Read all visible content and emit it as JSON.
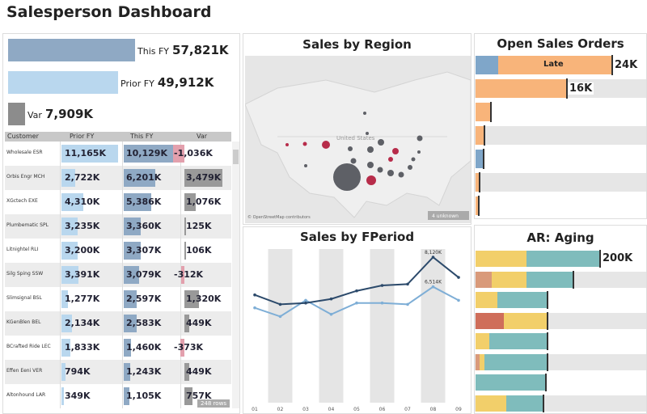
{
  "title": "Salesperson Dashboard",
  "kpis": [
    {
      "label": "This FY",
      "value": "57,821K",
      "amount": 57821,
      "color": "#8fa9c4"
    },
    {
      "label": "Prior FY",
      "value": "49,912K",
      "amount": 49912,
      "color": "#b9d7ee"
    },
    {
      "label": "Var",
      "value": "7,909K",
      "amount": 7909,
      "color": "#8c8c8c"
    }
  ],
  "table": {
    "headers": [
      "Customer",
      "Prior FY",
      "This FY",
      "Var"
    ],
    "rows": [
      {
        "customer": "Wholesale ESR",
        "prior": "11,165K",
        "prior_v": 11165,
        "this": "10,129K",
        "this_v": 10129,
        "var": "-1,036K",
        "var_v": -1036
      },
      {
        "customer": "Orbis Engr MCH",
        "prior": "2,722K",
        "prior_v": 2722,
        "this": "6,201K",
        "this_v": 6201,
        "var": "3,479K",
        "var_v": 3479
      },
      {
        "customer": "XGctech EXE",
        "prior": "4,310K",
        "prior_v": 4310,
        "this": "5,386K",
        "this_v": 5386,
        "var": "1,076K",
        "var_v": 1076
      },
      {
        "customer": "Plumbematic SPL",
        "prior": "3,235K",
        "prior_v": 3235,
        "this": "3,360K",
        "this_v": 3360,
        "var": "125K",
        "var_v": 125
      },
      {
        "customer": "Litnightel RLI",
        "prior": "3,200K",
        "prior_v": 3200,
        "this": "3,307K",
        "this_v": 3307,
        "var": "106K",
        "var_v": 106
      },
      {
        "customer": "Silg Sping SSW",
        "prior": "3,391K",
        "prior_v": 3391,
        "this": "3,079K",
        "this_v": 3079,
        "var": "-312K",
        "var_v": -312
      },
      {
        "customer": "Slimsignal BSL",
        "prior": "1,277K",
        "prior_v": 1277,
        "this": "2,597K",
        "this_v": 2597,
        "var": "1,320K",
        "var_v": 1320
      },
      {
        "customer": "KGenBlen BEL",
        "prior": "2,134K",
        "prior_v": 2134,
        "this": "2,583K",
        "this_v": 2583,
        "var": "449K",
        "var_v": 449
      },
      {
        "customer": "BCrafted Ride LEC",
        "prior": "1,833K",
        "prior_v": 1833,
        "this": "1,460K",
        "this_v": 1460,
        "var": "-373K",
        "var_v": -373
      },
      {
        "customer": "Effen Eeni VER",
        "prior": "794K",
        "prior_v": 794,
        "this": "1,243K",
        "this_v": 1243,
        "var": "449K",
        "var_v": 449
      },
      {
        "customer": "Altonhound LAR",
        "prior": "349K",
        "prior_v": 349,
        "this": "1,105K",
        "this_v": 1105,
        "var": "757K",
        "var_v": 757
      }
    ],
    "row_count_badge": "248 rows"
  },
  "map": {
    "title": "Sales by Region",
    "country_label": "United States",
    "attribution": "© OpenStreetMap contributors",
    "badge": "4 unknown"
  },
  "chart_data": {
    "type": "line",
    "title": "Sales by FPeriod",
    "categories": [
      "01",
      "02",
      "03",
      "04",
      "05",
      "06",
      "07",
      "08",
      "09"
    ],
    "series": [
      {
        "name": "This FY",
        "color": "#2c4a6b",
        "values": [
          6076,
          5565,
          5638,
          5857,
          6295,
          6587,
          6660,
          8120,
          7025
        ],
        "label_at": 7,
        "label": "8,120K"
      },
      {
        "name": "Prior FY",
        "color": "#7eaed6",
        "values": [
          5375,
          4908,
          5784,
          5025,
          5638,
          5638,
          5565,
          6514,
          5784
        ],
        "label_at": 7,
        "label": "6,514K"
      }
    ],
    "ylim": [
      240,
      8560
    ]
  },
  "open_orders": {
    "title": "Open Sales Orders",
    "max": 24,
    "late_label": "Late",
    "rows": [
      {
        "segments": [
          {
            "v": 4,
            "c": "#7fa6c9"
          },
          {
            "v": 20,
            "c": "#f8b47a"
          }
        ],
        "label": "24K"
      },
      {
        "segments": [
          {
            "v": 16,
            "c": "#f8b47a"
          }
        ],
        "label": "16K"
      },
      {
        "segments": [
          {
            "v": 2.5,
            "c": "#f8b47a"
          }
        ]
      },
      {
        "segments": [
          {
            "v": 1.4,
            "c": "#f8b47a"
          }
        ]
      },
      {
        "segments": [
          {
            "v": 1.3,
            "c": "#7fa6c9"
          }
        ]
      },
      {
        "segments": [
          {
            "v": 0.6,
            "c": "#f8b47a"
          }
        ]
      },
      {
        "segments": [
          {
            "v": 0.4,
            "c": "#f8b47a"
          }
        ]
      }
    ]
  },
  "ar_aging": {
    "title": "AR: Aging",
    "max": 200,
    "rows": [
      {
        "segments": [
          {
            "v": 82,
            "c": "#f2cf6a"
          },
          {
            "v": 118,
            "c": "#7fbcbc"
          }
        ],
        "label": "200K"
      },
      {
        "segments": [
          {
            "v": 26,
            "c": "#d99a7a"
          },
          {
            "v": 56,
            "c": "#f2cf6a"
          },
          {
            "v": 75,
            "c": "#7fbcbc"
          }
        ]
      },
      {
        "segments": [
          {
            "v": 35,
            "c": "#f2cf6a"
          },
          {
            "v": 80,
            "c": "#7fbcbc"
          }
        ]
      },
      {
        "segments": [
          {
            "v": 46,
            "c": "#cf6e5a"
          },
          {
            "v": 69,
            "c": "#f2cf6a"
          }
        ]
      },
      {
        "segments": [
          {
            "v": 22,
            "c": "#f2cf6a"
          },
          {
            "v": 93,
            "c": "#7fbcbc"
          }
        ]
      },
      {
        "segments": [
          {
            "v": 6,
            "c": "#d99a7a"
          },
          {
            "v": 9,
            "c": "#f2cf6a"
          },
          {
            "v": 100,
            "c": "#7fbcbc"
          }
        ]
      },
      {
        "segments": [
          {
            "v": 112,
            "c": "#7fbcbc"
          }
        ]
      },
      {
        "segments": [
          {
            "v": 50,
            "c": "#f2cf6a"
          },
          {
            "v": 58,
            "c": "#7fbcbc"
          }
        ]
      }
    ]
  }
}
